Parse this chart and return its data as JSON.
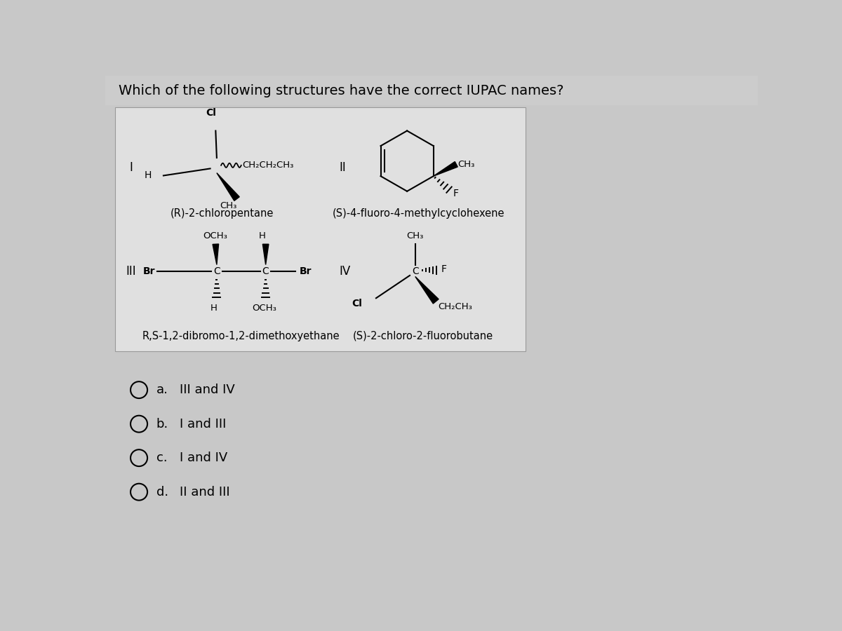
{
  "title": "Which of the following structures have the correct IUPAC names?",
  "title_fontsize": 14,
  "background_color": "#c8c8c8",
  "box_color": "#e6e6e6",
  "options": [
    {
      "label": "a.",
      "text": "III and IV"
    },
    {
      "label": "b.",
      "text": "I and III"
    },
    {
      "label": "c.",
      "text": "I and IV"
    },
    {
      "label": "d.",
      "text": "II and III"
    }
  ],
  "option_fontsize": 13,
  "structure_name_fontsize": 10.5
}
